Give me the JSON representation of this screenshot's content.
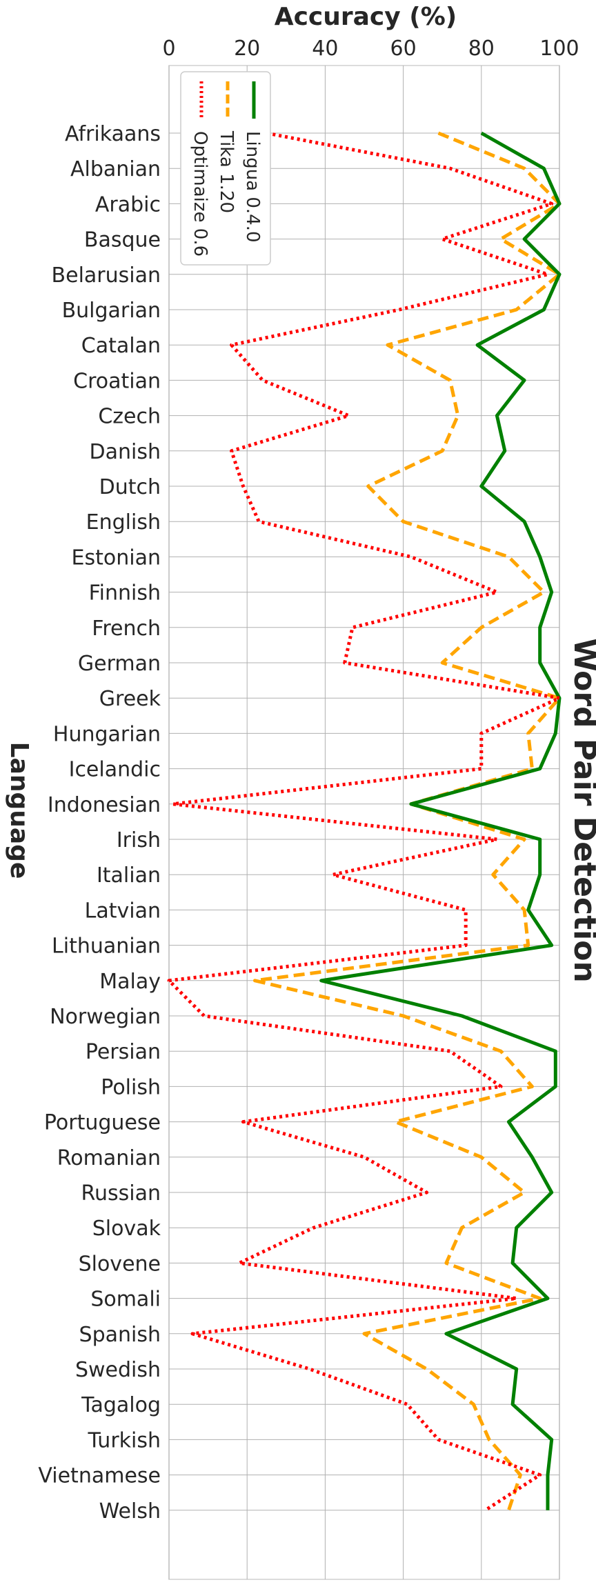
{
  "chart_data": {
    "type": "line",
    "orientation": "horizontal",
    "title": "Word Pair Detection",
    "xlabel": "Accuracy (%)",
    "ylabel": "Language",
    "xlim": [
      0,
      100
    ],
    "xticks": [
      "0",
      "20",
      "40",
      "60",
      "80",
      "100"
    ],
    "grid": true,
    "legend": "top-left",
    "categories": [
      "Afrikaans",
      "Albanian",
      "Arabic",
      "Basque",
      "Belarusian",
      "Bulgarian",
      "Catalan",
      "Croatian",
      "Czech",
      "Danish",
      "Dutch",
      "English",
      "Estonian",
      "Finnish",
      "French",
      "German",
      "Greek",
      "Hungarian",
      "Icelandic",
      "Indonesian",
      "Irish",
      "Italian",
      "Latvian",
      "Lithuanian",
      "Malay",
      "Norwegian",
      "Persian",
      "Polish",
      "Portuguese",
      "Romanian",
      "Russian",
      "Slovak",
      "Slovene",
      "Somali",
      "Spanish",
      "Swedish",
      "Tagalog",
      "Turkish",
      "Vietnamese",
      "Welsh"
    ],
    "series": [
      {
        "name": "Lingua 0.4.0",
        "color": "#008000",
        "style": "solid",
        "values": [
          80,
          96,
          100,
          91,
          100,
          96,
          79,
          91,
          84,
          86,
          80,
          91,
          95,
          98,
          95,
          95,
          100,
          99,
          95,
          62,
          95,
          95,
          92,
          98,
          39,
          75,
          99,
          99,
          87,
          93,
          98,
          89,
          88,
          97,
          71,
          89,
          88,
          98,
          97,
          97
        ]
      },
      {
        "name": "Tika 1.20",
        "color": "#FFA500",
        "style": "dashed",
        "values": [
          69,
          91,
          100,
          85,
          100,
          89,
          56,
          72,
          74,
          70,
          51,
          60,
          87,
          96,
          80,
          70,
          100,
          92,
          93,
          62,
          91,
          83,
          91,
          92,
          22,
          60,
          85,
          93,
          58,
          80,
          91,
          75,
          71,
          95,
          50,
          66,
          78,
          82,
          90,
          87
        ]
      },
      {
        "name": "Optimaize 0.6",
        "color": "#FF0000",
        "style": "dotted",
        "values": [
          25,
          72,
          98,
          70,
          97,
          59,
          16,
          24,
          46,
          16,
          19,
          23,
          62,
          84,
          47,
          45,
          100,
          80,
          80,
          1,
          84,
          42,
          76,
          76,
          0,
          9,
          72,
          85,
          19,
          50,
          66,
          37,
          18,
          89,
          6,
          36,
          61,
          69,
          95,
          81
        ]
      }
    ]
  }
}
